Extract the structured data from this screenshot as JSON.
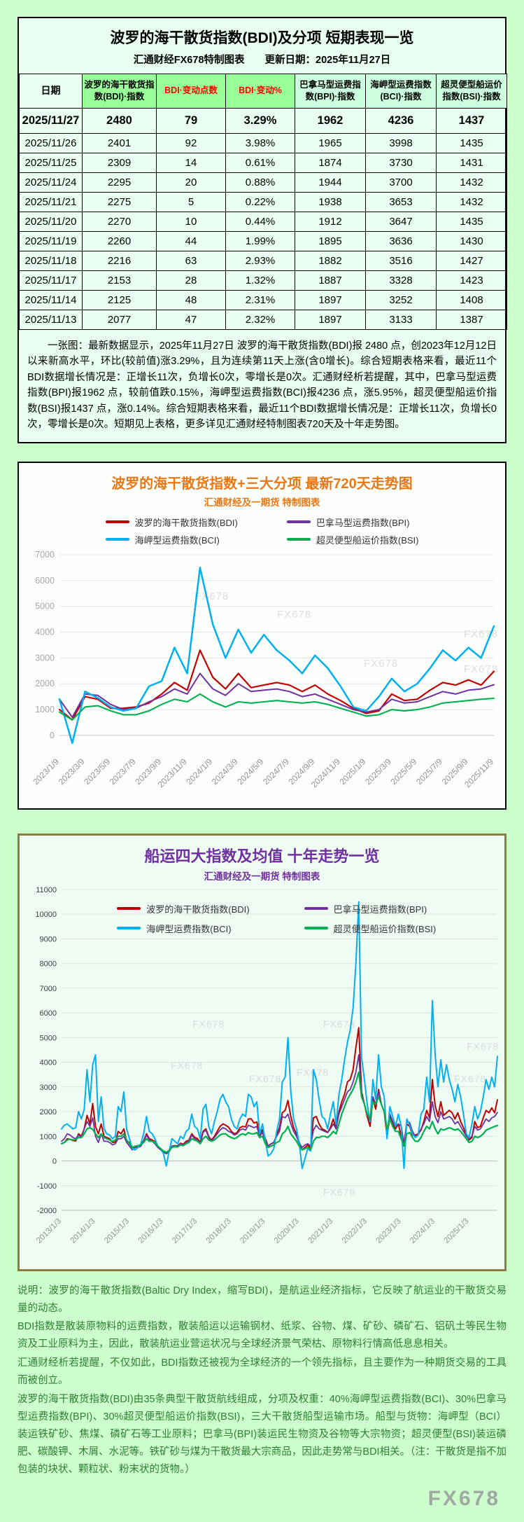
{
  "page": {
    "watermark": "FX678"
  },
  "table_card": {
    "title": "波罗的海干散货指数(BDI)及分项 短期表现一览",
    "subtitle": "汇通财经FX678特制图表　　更新日期：2025年11月27日",
    "headers": [
      "日期",
      "波罗的海干散货指数(BDI)·指数",
      "BDI·变动点数",
      "BDI·变动%",
      "巴拿马型运费指数(BPI)·指数",
      "海岬型运费指数(BCI)·指数",
      "超灵便型船运价指数(BSI)·指数"
    ],
    "rows": [
      [
        "2025/11/27",
        "2480",
        "79",
        "3.29%",
        "1962",
        "4236",
        "1437"
      ],
      [
        "2025/11/26",
        "2401",
        "92",
        "3.98%",
        "1965",
        "3998",
        "1435"
      ],
      [
        "2025/11/25",
        "2309",
        "14",
        "0.61%",
        "1874",
        "3730",
        "1431"
      ],
      [
        "2025/11/24",
        "2295",
        "20",
        "0.88%",
        "1944",
        "3700",
        "1432"
      ],
      [
        "2025/11/21",
        "2275",
        "5",
        "0.22%",
        "1938",
        "3653",
        "1432"
      ],
      [
        "2025/11/20",
        "2270",
        "10",
        "0.44%",
        "1912",
        "3647",
        "1435"
      ],
      [
        "2025/11/19",
        "2260",
        "44",
        "1.99%",
        "1895",
        "3636",
        "1430"
      ],
      [
        "2025/11/18",
        "2216",
        "63",
        "2.93%",
        "1882",
        "3516",
        "1427"
      ],
      [
        "2025/11/17",
        "2153",
        "28",
        "1.32%",
        "1887",
        "3328",
        "1423"
      ],
      [
        "2025/11/14",
        "2125",
        "48",
        "2.31%",
        "1897",
        "3252",
        "1408"
      ],
      [
        "2025/11/13",
        "2077",
        "47",
        "2.32%",
        "1897",
        "3133",
        "1387"
      ]
    ],
    "note": "一张图：最新数据显示，2025年11月27日 波罗的海干散货指数(BDI)报 2480 点，创2023年12月12日以来新高水平，环比(较前值)涨3.29%，且为连续第11天上涨(含0增长)。综合短期表格来看，最近11个BDI数据增长情况是：正增长11次，负增长0次，零增长是0次。汇通财经析若提醒，其中，巴拿马型运费指数(BPI)报1962 点，较前值跌0.15%，海岬型运费指数(BCI)报4236 点，涨5.95%，超灵便型船运价指数(BSI)报1437 点，涨0.14%。综合短期表格来看，最近11个BDI数据增长情况是：正增长11次，负增长0次，零增长是0次。短期见上表格，更多详见汇通财经特制图表720天及十年走势图。"
  },
  "chart720_card": {
    "title": "波罗的海干散货指数+三大分项  最新720天走势图",
    "subtitle": "汇通财经及一期货  特制图表"
  },
  "chart10y_card": {
    "title": "船运四大指数及均值 十年走势一览",
    "subtitle": "汇通财经及一期货 特制图表"
  },
  "footer": {
    "paragraphs": [
      "说明：波罗的海干散货指数(Baltic Dry Index，缩写BDI)，是航运业经济指标，它反映了航运业的干散货交易量的动态。",
      "BDI指数是散装原物料的运费指数，散装船运以运输钢材、纸浆、谷物、煤、矿砂、磷矿石、铝矾土等民生物资及工业原料为主，因此，散装航运业营运状况与全球经济景气荣枯、原物料行情高低息息相关。",
      "汇通财经析若提醒，不仅如此，BDI指数还被视为全球经济的一个领先指标，且主要作为一种期货交易的工具而被创立。",
      "波罗的海干散货指数(BDI)由35条典型干散货航线组成，分项及权重：40%海岬型运费指数(BCI)、30%巴拿马型运费指数(BPI)、30%超灵便型船运价指数(BSI)，三大干散货船型运输市场。船型与货物：海岬型（BCI）装运铁矿砂、焦煤、磷矿石等工业原料；巴拿马(BPI)装运民生物资及谷物等大宗物资；超灵便型(BSI)装运磷肥、碳酸钾、木屑、水泥等。铁矿砂与煤为干散货最大宗商品，因此走势常与BDI相关。（注：干散货是指不加包装的块状、颗粒状、粉末状的货物。）"
    ]
  },
  "chart_data": [
    {
      "type": "line",
      "title": "波罗的海干散货指数+三大分项  最新720天走势图",
      "subtitle": "汇通财经及一期货  特制图表",
      "grid": true,
      "legend_position": "top",
      "ylim": [
        -600,
        7000
      ],
      "yticks": [
        0,
        1000,
        2000,
        3000,
        4000,
        5000,
        6000,
        7000
      ],
      "x_labels": [
        "2023/1/9",
        "2023/3/9",
        "2023/5/9",
        "2023/7/9",
        "2023/9/9",
        "2023/11/9",
        "2024/1/9",
        "2024/3/9",
        "2024/5/9",
        "2024/7/9",
        "2024/9/9",
        "2024/11/9",
        "2025/1/9",
        "2025/3/9",
        "2025/5/9",
        "2025/7/9",
        "2025/9/9",
        "2025/11/9"
      ],
      "x_tick_indices": [
        0,
        2,
        4,
        6,
        8,
        10,
        12,
        14,
        16,
        18,
        20,
        22,
        24,
        26,
        28,
        30,
        32,
        34
      ],
      "series": [
        {
          "id": "bdi",
          "name": "波罗的海干散货指数(BDI)",
          "color": "#C00000",
          "values": [
            1000,
            600,
            1500,
            1400,
            1050,
            1050,
            1100,
            1250,
            1600,
            2050,
            1750,
            3300,
            2250,
            1800,
            2400,
            1850,
            1950,
            2050,
            1950,
            1700,
            1950,
            1600,
            1350,
            1050,
            850,
            950,
            1600,
            1350,
            1400,
            1750,
            2050,
            1950,
            2150,
            1950,
            2480
          ]
        },
        {
          "id": "bpi",
          "name": "巴拿马型运费指数(BPI)",
          "color": "#7030A0",
          "values": [
            1400,
            700,
            1600,
            1550,
            1200,
            1000,
            1050,
            1300,
            1500,
            1800,
            1600,
            2400,
            1800,
            1550,
            2000,
            1700,
            1750,
            1800,
            1700,
            1500,
            1600,
            1400,
            1200,
            1000,
            900,
            1000,
            1400,
            1250,
            1300,
            1500,
            1700,
            1600,
            1750,
            1800,
            1962
          ]
        },
        {
          "id": "bci",
          "name": "海岬型运费指数(BCI)",
          "color": "#00B0F0",
          "values": [
            1400,
            -300,
            1700,
            1450,
            1100,
            950,
            1050,
            1900,
            2100,
            3400,
            2400,
            6500,
            4300,
            3000,
            4100,
            3200,
            3900,
            3300,
            2900,
            2400,
            3100,
            2600,
            1900,
            1100,
            950,
            1500,
            2200,
            1700,
            2000,
            2600,
            3300,
            2900,
            3400,
            3000,
            4236
          ]
        },
        {
          "id": "bsi",
          "name": "超灵便型船运价指数(BSI)",
          "color": "#00B050",
          "values": [
            900,
            600,
            1100,
            1150,
            950,
            800,
            800,
            950,
            1200,
            1400,
            1300,
            1600,
            1300,
            1100,
            1300,
            1250,
            1300,
            1350,
            1300,
            1250,
            1300,
            1200,
            1050,
            900,
            750,
            800,
            1000,
            950,
            1000,
            1100,
            1250,
            1300,
            1350,
            1400,
            1437
          ]
        }
      ]
    },
    {
      "type": "line",
      "title": "船运四大指数及均值 十年走势一览",
      "subtitle": "汇通财经及一期货 特制图表",
      "grid": true,
      "legend_position": "inside-top",
      "ylim": [
        -2000,
        11000
      ],
      "yticks": [
        -2000,
        -1000,
        0,
        1000,
        2000,
        3000,
        4000,
        5000,
        6000,
        7000,
        8000,
        9000,
        10000,
        11000
      ],
      "x_labels": [
        "2013/1/3",
        "2014/1/3",
        "2015/1/3",
        "2016/1/3",
        "2017/1/3",
        "2018/1/3",
        "2019/1/3",
        "2020/1/3",
        "2021/1/3",
        "2022/1/3",
        "2023/1/3",
        "2024/1/3",
        "2025/1/3"
      ],
      "x_tick_indices": [
        0,
        12,
        24,
        36,
        48,
        60,
        72,
        84,
        96,
        108,
        120,
        132,
        144
      ],
      "series": [
        {
          "id": "bdi",
          "name": "波罗的海干散货指数(BDI)",
          "color": "#C00000",
          "values": [
            700,
            750,
            900,
            880,
            830,
            810,
            1100,
            1000,
            1300,
            1850,
            1500,
            2330,
            1400,
            1100,
            1500,
            1000,
            950,
            900,
            750,
            760,
            1200,
            1100,
            1300,
            800,
            750,
            550,
            580,
            590,
            630,
            820,
            1100,
            900,
            850,
            790,
            580,
            480,
            400,
            300,
            380,
            600,
            620,
            610,
            720,
            680,
            800,
            840,
            1100,
            960,
            910,
            750,
            1200,
            1300,
            980,
            850,
            1000,
            1200,
            1400,
            1500,
            1450,
            1370,
            1200,
            1100,
            1150,
            1350,
            1400,
            1380,
            1700,
            1710,
            1540,
            1580,
            1050,
            1270,
            900,
            600,
            690,
            740,
            1050,
            1350,
            1950,
            2050,
            2450,
            1800,
            1350,
            1090,
            750,
            450,
            550,
            650,
            500,
            1750,
            1800,
            1500,
            1300,
            1250,
            1150,
            1350,
            1700,
            1300,
            2000,
            2400,
            2700,
            3200,
            3300,
            3700,
            4600,
            5400,
            2800,
            2300,
            1800,
            1400,
            2550,
            2100,
            2900,
            2300,
            2000,
            1000,
            1800,
            1500,
            1300,
            1500,
            1000,
            600,
            1500,
            1400,
            1050,
            1050,
            1100,
            1250,
            1600,
            2050,
            1750,
            3300,
            2250,
            1800,
            2400,
            1850,
            1950,
            2050,
            1950,
            1700,
            1950,
            1600,
            1350,
            1050,
            850,
            950,
            1600,
            1350,
            1400,
            1750,
            2050,
            1950,
            2150,
            1950,
            2480
          ]
        },
        {
          "id": "bpi",
          "name": "巴拿马型运费指数(BPI)",
          "color": "#7030A0",
          "values": [
            800,
            900,
            1100,
            1050,
            950,
            900,
            1050,
            950,
            1300,
            1600,
            1400,
            1750,
            1000,
            750,
            1100,
            800,
            800,
            750,
            650,
            700,
            900,
            900,
            1000,
            750,
            600,
            450,
            550,
            550,
            600,
            800,
            1050,
            850,
            800,
            700,
            550,
            450,
            350,
            300,
            400,
            600,
            620,
            600,
            700,
            650,
            750,
            800,
            1050,
            900,
            850,
            700,
            1150,
            1250,
            950,
            800,
            950,
            1100,
            1250,
            1350,
            1300,
            1200,
            1150,
            1050,
            1100,
            1250,
            1300,
            1250,
            1450,
            1400,
            1350,
            1400,
            1000,
            1150,
            800,
            600,
            700,
            750,
            1000,
            1200,
            1800,
            1750,
            1900,
            1500,
            1200,
            1000,
            700,
            550,
            650,
            700,
            600,
            1250,
            1450,
            1300,
            1250,
            1200,
            1150,
            1300,
            1500,
            1300,
            1900,
            2200,
            2500,
            2800,
            2900,
            3200,
            3600,
            4300,
            2700,
            2300,
            1900,
            1600,
            2600,
            2300,
            2800,
            2300,
            2000,
            1200,
            1900,
            1600,
            1400,
            1500,
            1400,
            700,
            1600,
            1550,
            1200,
            1000,
            1050,
            1300,
            1500,
            1800,
            1600,
            2400,
            1800,
            1550,
            2000,
            1700,
            1750,
            1800,
            1700,
            1500,
            1600,
            1400,
            1200,
            1000,
            900,
            1000,
            1400,
            1250,
            1300,
            1500,
            1700,
            1600,
            1750,
            1800,
            1962
          ]
        },
        {
          "id": "bci",
          "name": "海岬型运费指数(BCI)",
          "color": "#00B0F0",
          "values": [
            1300,
            1450,
            1500,
            1400,
            1300,
            1350,
            2000,
            1700,
            2100,
            3700,
            2400,
            3900,
            4300,
            1600,
            2600,
            1300,
            1100,
            1050,
            900,
            1000,
            2200,
            2000,
            2800,
            1300,
            900,
            500,
            450,
            550,
            700,
            1100,
            1800,
            1200,
            1100,
            900,
            600,
            500,
            300,
            -200,
            400,
            900,
            800,
            700,
            1000,
            900,
            1200,
            1300,
            1900,
            1400,
            1300,
            900,
            2100,
            2300,
            1400,
            1100,
            1600,
            2000,
            2500,
            2700,
            2400,
            2200,
            1700,
            1400,
            1300,
            1700,
            1900,
            1800,
            2700,
            2600,
            2200,
            2400,
            1100,
            1500,
            800,
            200,
            300,
            500,
            1200,
            1700,
            3200,
            3400,
            5000,
            2800,
            1700,
            1300,
            700,
            -300,
            100,
            500,
            400,
            3700,
            3300,
            2500,
            1800,
            1700,
            1300,
            1900,
            2400,
            1500,
            2700,
            3300,
            4100,
            4800,
            5300,
            6200,
            8000,
            10500,
            4200,
            3300,
            2300,
            1600,
            3300,
            2500,
            4300,
            3000,
            2600,
            900,
            2200,
            1800,
            1400,
            1900,
            1400,
            -300,
            1700,
            1450,
            1100,
            950,
            1050,
            1900,
            2100,
            3400,
            2400,
            6500,
            4300,
            3000,
            4100,
            3200,
            3900,
            3300,
            2900,
            2400,
            3100,
            2600,
            1900,
            1100,
            950,
            1500,
            2200,
            1700,
            2000,
            2600,
            3300,
            2900,
            3400,
            3000,
            4236
          ]
        },
        {
          "id": "bsi",
          "name": "超灵便型船运价指数(BSI)",
          "color": "#00B050",
          "values": [
            700,
            750,
            850,
            880,
            850,
            870,
            950,
            950,
            1100,
            1300,
            1350,
            1280,
            1100,
            950,
            1100,
            950,
            900,
            850,
            800,
            850,
            1000,
            1000,
            1100,
            850,
            700,
            550,
            600,
            620,
            650,
            750,
            900,
            800,
            800,
            750,
            600,
            500,
            400,
            350,
            420,
            550,
            580,
            570,
            650,
            620,
            700,
            750,
            900,
            850,
            800,
            700,
            900,
            1000,
            850,
            800,
            850,
            950,
            1050,
            1100,
            1100,
            1000,
            950,
            900,
            950,
            1050,
            1100,
            1050,
            1150,
            1100,
            1100,
            1150,
            950,
            1000,
            700,
            550,
            600,
            650,
            750,
            800,
            1100,
            1200,
            1400,
            1100,
            950,
            800,
            600,
            450,
            500,
            550,
            450,
            800,
            950,
            950,
            1000,
            1000,
            950,
            1050,
            1200,
            1100,
            1500,
            1900,
            2200,
            2500,
            2700,
            2900,
            3200,
            3600,
            2600,
            2300,
            1900,
            1700,
            2400,
            2300,
            2600,
            2300,
            2000,
            1300,
            1700,
            1400,
            1200,
            1200,
            900,
            600,
            1100,
            1150,
            950,
            800,
            800,
            950,
            1200,
            1400,
            1300,
            1600,
            1300,
            1100,
            1300,
            1250,
            1300,
            1350,
            1300,
            1250,
            1300,
            1200,
            1050,
            900,
            750,
            800,
            1000,
            950,
            1000,
            1100,
            1250,
            1300,
            1350,
            1400,
            1437
          ]
        }
      ]
    }
  ]
}
